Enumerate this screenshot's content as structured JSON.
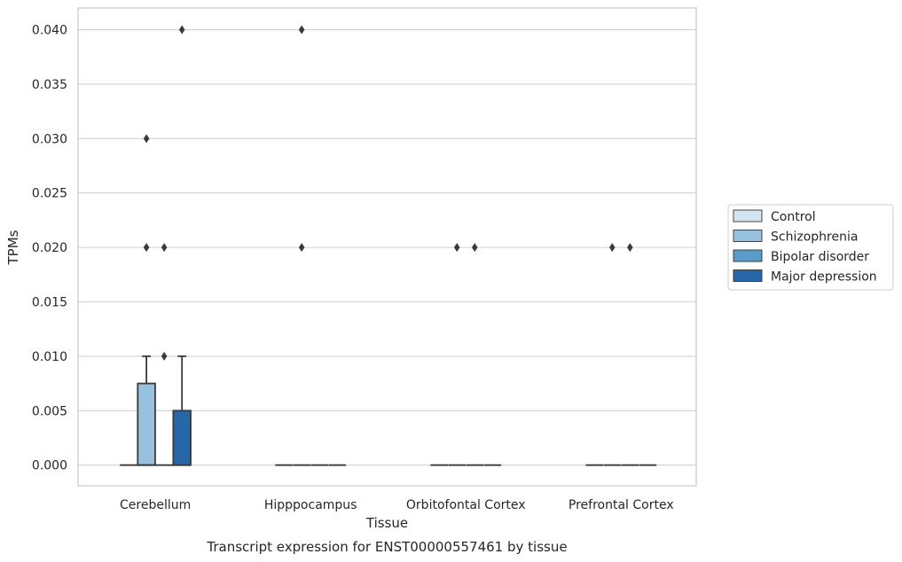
{
  "chart_data": {
    "type": "box",
    "xlabel": "Tissue",
    "ylabel": "TPMs",
    "caption": "Transcript expression for ENST00000557461 by tissue",
    "ylim": [
      -0.0019,
      0.042
    ],
    "yticks": [
      "0.000",
      "0.005",
      "0.010",
      "0.015",
      "0.020",
      "0.025",
      "0.030",
      "0.035",
      "0.040"
    ],
    "grid": "horizontal",
    "legend_position": "right",
    "categories": [
      "Cerebellum",
      "Hipppocampus",
      "Orbitofontal Cortex",
      "Prefrontal Cortex"
    ],
    "series": [
      {
        "name": "Control",
        "color": "#d3e4f3",
        "boxes": [
          {
            "q1": 0,
            "median": 0,
            "q3": 0,
            "whislo": 0,
            "whishi": 0,
            "fliers": []
          },
          {
            "q1": 0,
            "median": 0,
            "q3": 0,
            "whislo": 0,
            "whishi": 0,
            "fliers": []
          },
          {
            "q1": 0,
            "median": 0,
            "q3": 0,
            "whislo": 0,
            "whishi": 0,
            "fliers": []
          },
          {
            "q1": 0,
            "median": 0,
            "q3": 0,
            "whislo": 0,
            "whishi": 0,
            "fliers": []
          }
        ]
      },
      {
        "name": "Schizophrenia",
        "color": "#97c1df",
        "boxes": [
          {
            "q1": 0,
            "median": 0,
            "q3": 0.0075,
            "whislo": 0,
            "whishi": 0.01,
            "fliers": [
              0.02,
              0.03
            ]
          },
          {
            "q1": 0,
            "median": 0,
            "q3": 0,
            "whislo": 0,
            "whishi": 0,
            "fliers": [
              0.02,
              0.04
            ]
          },
          {
            "q1": 0,
            "median": 0,
            "q3": 0,
            "whislo": 0,
            "whishi": 0,
            "fliers": [
              0.02
            ]
          },
          {
            "q1": 0,
            "median": 0,
            "q3": 0,
            "whislo": 0,
            "whishi": 0,
            "fliers": [
              0.02
            ]
          }
        ]
      },
      {
        "name": "Bipolar disorder",
        "color": "#5a9bc9",
        "boxes": [
          {
            "q1": 0,
            "median": 0,
            "q3": 0,
            "whislo": 0,
            "whishi": 0,
            "fliers": [
              0.01,
              0.02
            ]
          },
          {
            "q1": 0,
            "median": 0,
            "q3": 0,
            "whislo": 0,
            "whishi": 0,
            "fliers": []
          },
          {
            "q1": 0,
            "median": 0,
            "q3": 0,
            "whislo": 0,
            "whishi": 0,
            "fliers": [
              0.02
            ]
          },
          {
            "q1": 0,
            "median": 0,
            "q3": 0,
            "whislo": 0,
            "whishi": 0,
            "fliers": [
              0.02
            ]
          }
        ]
      },
      {
        "name": "Major depression",
        "color": "#2767a8",
        "boxes": [
          {
            "q1": 0,
            "median": 0,
            "q3": 0.005,
            "whislo": 0,
            "whishi": 0.01,
            "fliers": [
              0.04
            ]
          },
          {
            "q1": 0,
            "median": 0,
            "q3": 0,
            "whislo": 0,
            "whishi": 0,
            "fliers": []
          },
          {
            "q1": 0,
            "median": 0,
            "q3": 0,
            "whislo": 0,
            "whishi": 0,
            "fliers": []
          },
          {
            "q1": 0,
            "median": 0,
            "q3": 0,
            "whislo": 0,
            "whishi": 0,
            "fliers": []
          }
        ]
      }
    ]
  },
  "colors": {
    "grid": "#d0d0d0",
    "frame": "#cccccc",
    "line": "#3a3a3a",
    "legend_border": "#cccccc"
  }
}
